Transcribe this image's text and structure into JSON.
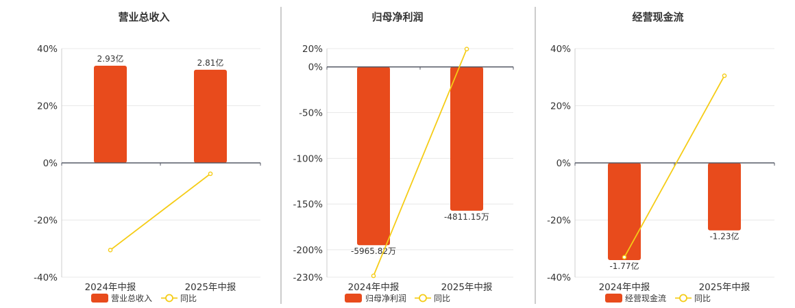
{
  "colors": {
    "bar": "#E84B1C",
    "line": "#F5CC16",
    "axis": "#555A66",
    "grid": "#E8E8E8",
    "text": "#333333",
    "divider": "#999999"
  },
  "chart_data": [
    {
      "type": "bar",
      "title": "营业总收入",
      "categories": [
        "2024年中报",
        "2025年中报"
      ],
      "series": [
        {
          "name": "营业总收入",
          "type": "bar",
          "values": [
            2.93,
            2.81
          ],
          "value_labels": [
            "2.93亿",
            "2.81亿"
          ]
        },
        {
          "name": "同比",
          "type": "line",
          "values": [
            -30.5,
            -3.8
          ]
        }
      ],
      "y_ticks": [
        "40%",
        "20%",
        "0%",
        "-20%",
        "-40%"
      ],
      "ylim": [
        -40,
        40
      ],
      "legend": "bottom",
      "grid": true
    },
    {
      "type": "bar",
      "title": "归母净利润",
      "categories": [
        "2024年中报",
        "2025年中报"
      ],
      "series": [
        {
          "name": "归母净利润",
          "type": "bar",
          "values": [
            -5965.82,
            -4811.15
          ],
          "value_labels": [
            "-5965.82万",
            "-4811.15万"
          ]
        },
        {
          "name": "同比",
          "type": "line",
          "values": [
            -228.5,
            19.5
          ]
        }
      ],
      "y_ticks": [
        "20%",
        "0%",
        "-50%",
        "-100%",
        "-150%",
        "-200%",
        "-230%"
      ],
      "ylim": [
        -230,
        20
      ],
      "legend": "bottom",
      "grid": true
    },
    {
      "type": "bar",
      "title": "经营现金流",
      "categories": [
        "2024年中报",
        "2025年中报"
      ],
      "series": [
        {
          "name": "经营现金流",
          "type": "bar",
          "values": [
            -1.77,
            -1.23
          ],
          "value_labels": [
            "-1.77亿",
            "-1.23亿"
          ]
        },
        {
          "name": "同比",
          "type": "line",
          "values": [
            -33.0,
            30.5
          ]
        }
      ],
      "y_ticks": [
        "40%",
        "20%",
        "0%",
        "-20%",
        "-40%"
      ],
      "ylim": [
        -40,
        40
      ],
      "legend": "bottom",
      "grid": true
    }
  ]
}
